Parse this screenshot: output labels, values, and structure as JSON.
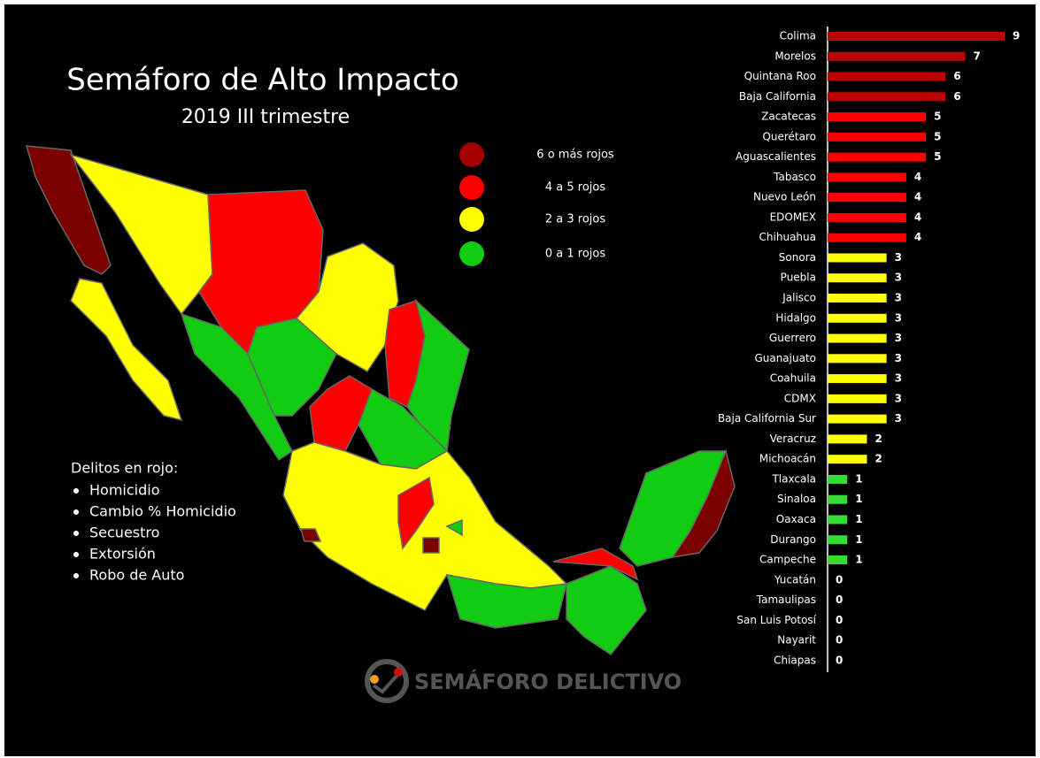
{
  "title": "Semáforo de Alto Impacto",
  "subtitle": "2019 III trimestre",
  "legend": [
    {
      "label": "6 o más rojos",
      "color": "#a50000"
    },
    {
      "label": "4 a 5 rojos",
      "color": "#ff0000"
    },
    {
      "label": "2 a 3  rojos",
      "color": "#ffff00"
    },
    {
      "label": "0 a 1 rojos",
      "color": "#11cc11"
    }
  ],
  "notes": {
    "heading": "Delitos en rojo:",
    "items": [
      "Homicidio",
      "Cambio % Homicidio",
      "Secuestro",
      "Extorsión",
      "Robo de Auto"
    ]
  },
  "logo": "SEMÁFORO DELICTIVO",
  "chart_data": {
    "type": "hbar",
    "categories": [
      "Colima",
      "Morelos",
      "Quintana Roo",
      "Baja California",
      "Zacatecas",
      "Querétaro",
      "Aguascalientes",
      "Tabasco",
      "Nuevo León",
      "EDOMEX",
      "Chihuahua",
      "Sonora",
      "Puebla",
      "Jalisco",
      "Hidalgo",
      "Guerrero",
      "Guanajuato",
      "Coahuila",
      "CDMX",
      "Baja California Sur",
      "Veracruz",
      "Michoacán",
      "Tlaxcala",
      "Sinaloa",
      "Oaxaca",
      "Durango",
      "Campeche",
      "Yucatán",
      "Tamaulipas",
      "San Luis Potosí",
      "Nayarit",
      "Chiapas"
    ],
    "values": [
      9,
      7,
      6,
      6,
      5,
      5,
      5,
      4,
      4,
      4,
      4,
      3,
      3,
      3,
      3,
      3,
      3,
      3,
      3,
      3,
      2,
      2,
      1,
      1,
      1,
      1,
      1,
      0,
      0,
      0,
      0,
      0
    ],
    "colors": [
      "#c00000",
      "#c00000",
      "#c00000",
      "#c00000",
      "#ff0000",
      "#ff0000",
      "#ff0000",
      "#ff0000",
      "#ff0000",
      "#ff0000",
      "#ff0000",
      "#ffff00",
      "#ffff00",
      "#ffff00",
      "#ffff00",
      "#ffff00",
      "#ffff00",
      "#ffff00",
      "#ffff00",
      "#ffff00",
      "#ffff00",
      "#ffff00",
      "#33dd33",
      "#33dd33",
      "#33dd33",
      "#33dd33",
      "#33dd33",
      "#33dd33",
      "#33dd33",
      "#33dd33",
      "#33dd33",
      "#33dd33"
    ],
    "xlim": [
      0,
      9
    ]
  }
}
